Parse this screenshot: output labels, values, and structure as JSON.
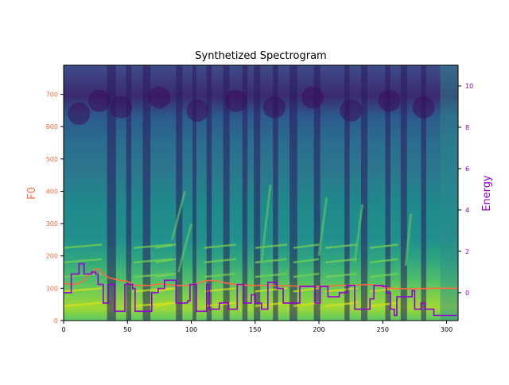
{
  "chart_data": {
    "type": "line",
    "title": "Synthetized Spectrogram",
    "background": "heatmap",
    "colormap": "viridis",
    "x_ticks": [
      0,
      50,
      100,
      150,
      200,
      250,
      300
    ],
    "xlim": [
      0,
      309
    ],
    "y_left": {
      "label": "F0",
      "color": "#ff6b3d",
      "ticks": [
        0,
        100,
        200,
        300,
        400,
        500,
        600,
        700
      ],
      "ylim": [
        0,
        790
      ]
    },
    "y_right": {
      "label": "Energy",
      "color": "#9400d3",
      "ticks": [
        0,
        2,
        4,
        6,
        8,
        10
      ],
      "ylim": [
        -1.35,
        11.0
      ]
    },
    "series": [
      {
        "axis": "left",
        "color": "#ff6b3d",
        "x": [
          0,
          5,
          10,
          15,
          18,
          20,
          23,
          25,
          28,
          30,
          33,
          36,
          40,
          45,
          50,
          55,
          60,
          65,
          70,
          75,
          80,
          85,
          90,
          95,
          100,
          105,
          110,
          115,
          120,
          125,
          130,
          140,
          150,
          160,
          170,
          180,
          190,
          200,
          210,
          220,
          230,
          240,
          250,
          255,
          260,
          270,
          280,
          290,
          300,
          309
        ],
        "values": [
          115,
          113,
          112,
          122,
          134,
          142,
          150,
          160,
          158,
          148,
          138,
          132,
          128,
          124,
          121,
          110,
          108,
          108,
          110,
          114,
          112,
          110,
          108,
          108,
          110,
          115,
          122,
          125,
          122,
          118,
          114,
          110,
          108,
          109,
          108,
          107,
          106,
          106,
          107,
          109,
          110,
          112,
          105,
          100,
          99,
          98,
          99,
          100,
          100,
          100
        ]
      },
      {
        "axis": "right",
        "color": "#9400d3",
        "x": [
          0,
          6,
          12,
          16,
          19,
          22,
          25,
          27,
          29,
          31,
          33,
          35,
          37,
          40,
          46,
          48,
          51,
          54,
          56,
          64,
          69,
          71,
          74,
          79,
          84,
          88,
          94,
          97,
          99,
          104,
          109,
          112,
          114,
          119,
          122,
          125,
          129,
          136,
          141,
          144,
          147,
          150,
          155,
          160,
          167,
          170,
          172,
          180,
          185,
          193,
          197,
          201,
          207,
          211,
          216,
          222,
          228,
          234,
          240,
          243,
          250,
          253,
          256,
          259,
          261,
          268,
          273,
          275,
          280,
          283,
          290,
          294,
          299,
          303,
          308
        ],
        "values": [
          0.0,
          0.9,
          1.4,
          0.9,
          0.9,
          1.0,
          0.9,
          0.4,
          0.4,
          -0.5,
          -0.5,
          0.4,
          0.4,
          -0.9,
          -0.9,
          0.4,
          0.4,
          0.2,
          -0.9,
          -0.9,
          0.0,
          0.0,
          0.2,
          0.6,
          0.6,
          -0.5,
          -0.5,
          -0.4,
          0.4,
          -0.9,
          -0.9,
          0.4,
          -0.8,
          -0.8,
          -0.5,
          -0.5,
          -0.8,
          0.4,
          -0.5,
          -0.5,
          -0.1,
          -0.5,
          -0.8,
          0.5,
          0.2,
          0.2,
          -0.5,
          -0.5,
          0.3,
          0.3,
          -0.5,
          0.3,
          -0.2,
          -0.2,
          0.0,
          0.35,
          -0.8,
          -0.8,
          -0.3,
          0.35,
          0.3,
          0.0,
          -0.8,
          -1.1,
          -0.2,
          -0.2,
          0.1,
          -0.8,
          -0.5,
          -0.8,
          -1.1,
          -1.1,
          -1.1,
          -1.1,
          -1.1
        ]
      }
    ]
  }
}
